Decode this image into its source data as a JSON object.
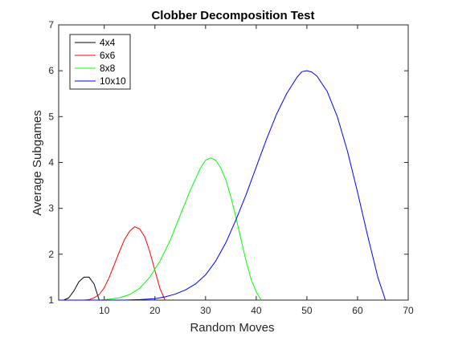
{
  "chart_data": {
    "type": "line",
    "title": "Clobber Decomposition Test",
    "xlabel": "Random Moves",
    "ylabel": "Average Subgames",
    "xlim": [
      1,
      70
    ],
    "ylim": [
      1,
      7
    ],
    "xticks": [
      10,
      20,
      30,
      40,
      50,
      60,
      70
    ],
    "yticks": [
      1,
      2,
      3,
      4,
      5,
      6,
      7
    ],
    "grid": false,
    "legend_position": "top-left",
    "series": [
      {
        "name": "4x4",
        "color": "#000000",
        "x": [
          1,
          2,
          3,
          4,
          5,
          6,
          7,
          8,
          9
        ],
        "y": [
          1.0,
          1.0,
          1.05,
          1.2,
          1.4,
          1.5,
          1.5,
          1.35,
          1.0
        ]
      },
      {
        "name": "6x6",
        "color": "#ff0000",
        "x": [
          1,
          2,
          3,
          4,
          5,
          6,
          7,
          8,
          9,
          10,
          11,
          12,
          13,
          14,
          15,
          16,
          17,
          18,
          19,
          20,
          21,
          22
        ],
        "y": [
          1.0,
          1.0,
          1.0,
          1.0,
          1.0,
          1.0,
          1.01,
          1.05,
          1.12,
          1.27,
          1.5,
          1.78,
          2.06,
          2.32,
          2.5,
          2.6,
          2.55,
          2.38,
          2.05,
          1.65,
          1.25,
          1.0
        ]
      },
      {
        "name": "8x8",
        "color": "#00ff00",
        "x": [
          1,
          3,
          5,
          7,
          9,
          11,
          13,
          15,
          17,
          19,
          21,
          23,
          25,
          27,
          29,
          30,
          31,
          32,
          33,
          34,
          35,
          36,
          37,
          38,
          39,
          40,
          41
        ],
        "y": [
          1.0,
          1.0,
          1.0,
          1.0,
          1.0,
          1.02,
          1.05,
          1.12,
          1.26,
          1.5,
          1.85,
          2.3,
          2.85,
          3.4,
          3.88,
          4.05,
          4.1,
          4.05,
          3.88,
          3.62,
          3.25,
          2.8,
          2.32,
          1.85,
          1.45,
          1.18,
          1.0
        ]
      },
      {
        "name": "10x10",
        "color": "#0000ff",
        "x": [
          1,
          5,
          10,
          14,
          17,
          20,
          22,
          24,
          26,
          28,
          30,
          32,
          34,
          36,
          38,
          40,
          42,
          44,
          46,
          48,
          49,
          50,
          51,
          52,
          54,
          56,
          58,
          60,
          62,
          64,
          65.5
        ],
        "y": [
          1.0,
          1.0,
          1.0,
          1.0,
          1.01,
          1.03,
          1.07,
          1.13,
          1.22,
          1.35,
          1.55,
          1.85,
          2.25,
          2.75,
          3.3,
          3.9,
          4.5,
          5.05,
          5.5,
          5.85,
          5.98,
          6.0,
          5.97,
          5.88,
          5.55,
          5.0,
          4.25,
          3.35,
          2.4,
          1.5,
          1.0
        ]
      }
    ]
  }
}
